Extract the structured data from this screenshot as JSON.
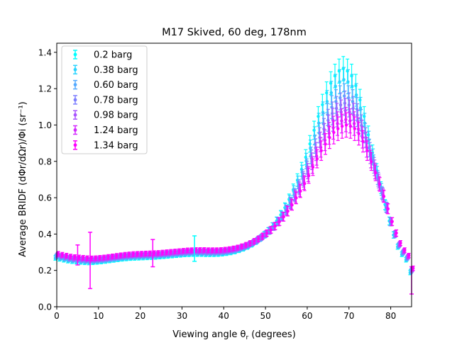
{
  "chart_data": {
    "type": "scatter",
    "title": "M17 Skived, 60 deg, 178nm",
    "xlabel": "Viewing angle θ",
    "xlabel_sub": "r",
    "xlabel_suffix": " (degrees)",
    "ylabel": "Average BRIDF (dΦr/dΩr)/Φi (sr⁻¹)",
    "xlim": [
      0,
      85
    ],
    "ylim": [
      0,
      1.45
    ],
    "xticks": [
      0,
      10,
      20,
      30,
      40,
      50,
      60,
      70,
      80
    ],
    "yticks": [
      0.0,
      0.2,
      0.4,
      0.6,
      0.8,
      1.0,
      1.2,
      1.4
    ],
    "xtick_labels": [
      "0",
      "10",
      "20",
      "30",
      "40",
      "50",
      "60",
      "70",
      "80"
    ],
    "ytick_labels": [
      "0.0",
      "0.2",
      "0.4",
      "0.6",
      "0.8",
      "1.0",
      "1.2",
      "1.4"
    ],
    "grid": false,
    "legend_position": "top-left",
    "series": [
      {
        "name": "0.2 barg",
        "color": "#00ffff",
        "peak": 1.31
      },
      {
        "name": "0.38 barg",
        "color": "#2bd4ff",
        "peak": 1.25
      },
      {
        "name": "0.60 barg",
        "color": "#55aaff",
        "peak": 1.16
      },
      {
        "name": "0.78 barg",
        "color": "#7f80ff",
        "peak": 1.12
      },
      {
        "name": "0.98 barg",
        "color": "#aa55ff",
        "peak": 1.08
      },
      {
        "name": "1.24 barg",
        "color": "#d42bff",
        "peak": 1.03
      },
      {
        "name": "1.34 barg",
        "color": "#ff00ff",
        "peak": 1.0
      }
    ],
    "x": [
      0,
      1,
      2,
      3,
      4,
      5,
      6,
      7,
      8,
      9,
      10,
      11,
      12,
      13,
      14,
      15,
      16,
      17,
      18,
      19,
      20,
      21,
      22,
      23,
      24,
      25,
      26,
      27,
      28,
      29,
      30,
      31,
      32,
      33,
      34,
      35,
      36,
      37,
      38,
      39,
      40,
      41,
      42,
      43,
      44,
      45,
      46,
      47,
      48,
      49,
      50,
      51,
      52,
      53,
      54,
      55,
      56,
      57,
      58,
      59,
      60,
      61,
      62,
      63,
      64,
      65,
      66,
      67,
      68,
      69,
      70,
      71,
      72,
      73,
      74,
      75,
      76,
      77,
      78,
      79,
      80,
      81,
      82,
      83,
      84,
      85
    ],
    "base_curve": [
      0.28,
      0.275,
      0.27,
      0.265,
      0.262,
      0.26,
      0.258,
      0.256,
      0.255,
      0.256,
      0.258,
      0.26,
      0.263,
      0.266,
      0.269,
      0.272,
      0.275,
      0.277,
      0.279,
      0.28,
      0.281,
      0.282,
      0.283,
      0.284,
      0.285,
      0.287,
      0.289,
      0.291,
      0.293,
      0.295,
      0.297,
      0.299,
      0.3,
      0.301,
      0.301,
      0.301,
      0.3,
      0.3,
      0.3,
      0.301,
      0.303,
      0.306,
      0.31,
      0.315,
      0.322,
      0.33,
      0.34,
      0.352,
      0.366,
      0.382,
      0.4,
      0.42,
      0.443,
      0.47,
      0.5,
      0.535,
      0.575,
      0.62,
      0.665,
      0.715,
      0.77,
      0.83,
      0.89,
      0.95,
      1.0,
      1.05,
      1.09,
      1.12,
      1.14,
      1.15,
      1.14,
      1.12,
      1.08,
      1.02,
      0.95,
      0.87,
      0.79,
      0.71,
      0.63,
      0.55,
      0.47,
      0.4,
      0.34,
      0.3,
      0.27,
      0.2
    ],
    "outlier_errors": [
      {
        "x": 8,
        "y": 0.255,
        "lo": 0.1,
        "hi": 0.41,
        "series": "1.34 barg"
      },
      {
        "x": 5,
        "y": 0.27,
        "lo": 0.23,
        "hi": 0.34,
        "series": "1.34 barg"
      },
      {
        "x": 23,
        "y": 0.29,
        "lo": 0.22,
        "hi": 0.37,
        "series": "1.34 barg"
      },
      {
        "x": 33,
        "y": 0.32,
        "lo": 0.25,
        "hi": 0.39,
        "series": "0.2 barg"
      },
      {
        "x": 85,
        "y": 0.14,
        "lo": 0.07,
        "hi": 0.22,
        "series": "1.34 barg"
      }
    ]
  }
}
